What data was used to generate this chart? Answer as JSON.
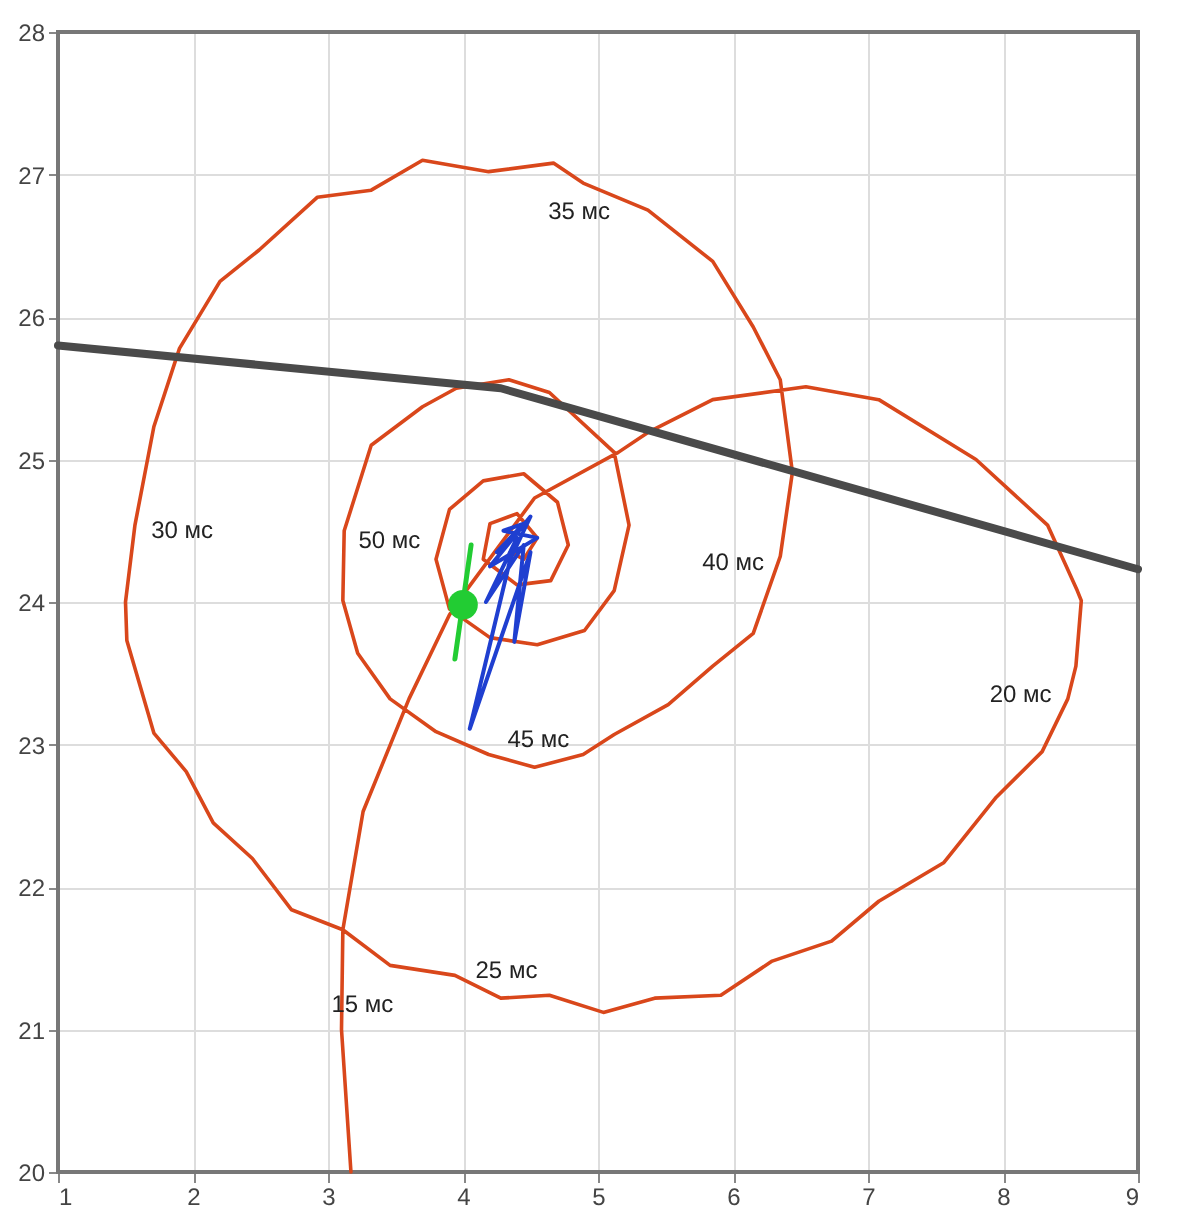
{
  "chart_data": {
    "type": "line",
    "xlim": [
      1,
      9
    ],
    "ylim": [
      20,
      28
    ],
    "xticks": [
      1,
      2,
      3,
      4,
      5,
      6,
      7,
      8,
      9
    ],
    "yticks": [
      20,
      21,
      22,
      23,
      24,
      25,
      26,
      27,
      28
    ],
    "grid": true,
    "marker": "none",
    "line_style": "solid",
    "series": [
      {
        "color": "#d9471b",
        "x": [
          3.17,
          3.1,
          3.11,
          3.26,
          3.6,
          3.9,
          4.0,
          4.53,
          5.15,
          5.37,
          5.85,
          6.54,
          7.08,
          7.8,
          8.33,
          8.55,
          8.58,
          8.54,
          8.48,
          8.29,
          7.95,
          7.56,
          7.08,
          6.73,
          6.29,
          5.91,
          5.42,
          5.04,
          4.64,
          4.28,
          3.94,
          3.46,
          3.11,
          2.73,
          2.44,
          2.15,
          1.95,
          1.71,
          1.51,
          1.5,
          1.57,
          1.71,
          1.9,
          2.2,
          2.49,
          2.92,
          3.32,
          3.7,
          4.19,
          4.67,
          4.89,
          5.37,
          5.85,
          6.15,
          6.35,
          6.44,
          6.35,
          6.15,
          5.85,
          5.52,
          5.12,
          4.89,
          4.53,
          4.19,
          3.8,
          3.46,
          3.22,
          3.11,
          3.12,
          3.32,
          3.7,
          3.95,
          4.34,
          4.64,
          5.12,
          5.23,
          5.12,
          4.9,
          4.55,
          4.2,
          3.9,
          3.8,
          3.9,
          4.15,
          4.45,
          4.7,
          4.78,
          4.65,
          4.4,
          4.15,
          4.2,
          4.4,
          4.55,
          4.45,
          4.35
        ],
        "values": [
          20.0,
          21.0,
          21.7,
          22.53,
          23.32,
          23.91,
          24.05,
          24.73,
          25.05,
          25.19,
          25.42,
          25.51,
          25.42,
          25.0,
          24.54,
          24.08,
          24.01,
          23.55,
          23.32,
          22.95,
          22.63,
          22.17,
          21.9,
          21.62,
          21.48,
          21.24,
          21.22,
          21.12,
          21.24,
          21.22,
          21.38,
          21.45,
          21.7,
          21.84,
          22.2,
          22.45,
          22.81,
          23.08,
          23.73,
          24.0,
          24.54,
          25.23,
          25.78,
          26.25,
          26.47,
          26.84,
          26.89,
          27.1,
          27.02,
          27.08,
          26.94,
          26.75,
          26.39,
          25.93,
          25.56,
          24.91,
          24.32,
          23.78,
          23.55,
          23.28,
          23.07,
          22.93,
          22.84,
          22.93,
          23.09,
          23.32,
          23.64,
          24.01,
          24.5,
          25.1,
          25.37,
          25.5,
          25.56,
          25.47,
          25.05,
          24.54,
          24.08,
          23.8,
          23.7,
          23.75,
          23.95,
          24.3,
          24.65,
          24.85,
          24.9,
          24.7,
          24.4,
          24.15,
          24.12,
          24.3,
          24.55,
          24.62,
          24.45,
          24.3,
          24.35
        ]
      },
      {
        "color": "#4a4a4a",
        "x": [
          1,
          4.28,
          9
        ],
        "values": [
          25.8,
          25.5,
          24.23
        ]
      },
      {
        "color": "#1f3fd0",
        "x": [
          4.25,
          4.45,
          4.3,
          4.55,
          4.2,
          4.5,
          4.35,
          4.05,
          4.5,
          4.38,
          4.45,
          4.17,
          4.4
        ],
        "values": [
          24.35,
          24.55,
          24.5,
          24.45,
          24.25,
          24.6,
          24.3,
          23.11,
          24.35,
          23.72,
          24.4,
          24.0,
          24.45
        ]
      },
      {
        "color": "#22cc33",
        "x": [
          3.94,
          4.06
        ],
        "values": [
          23.6,
          24.4
        ]
      },
      {
        "type": "scatter",
        "color": "#22cc33",
        "marker": "circle",
        "x": [
          4.0
        ],
        "values": [
          23.98
        ]
      }
    ],
    "annotations": [
      {
        "text": "15 мс",
        "x": 3.1,
        "y": 21.0
      },
      {
        "text": "20 мс",
        "x": 8.48,
        "y": 23.32
      },
      {
        "text": "25 мс",
        "x": 4.28,
        "y": 21.22
      },
      {
        "text": "30 мс",
        "x": 1.57,
        "y": 24.54
      },
      {
        "text": "35 мс",
        "x": 4.89,
        "y": 26.94
      },
      {
        "text": "40 мс",
        "x": 6.35,
        "y": 24.32
      },
      {
        "text": "45 мс",
        "x": 4.53,
        "y": 22.84
      },
      {
        "text": "50 мс",
        "x": 3.12,
        "y": 24.5
      }
    ]
  }
}
